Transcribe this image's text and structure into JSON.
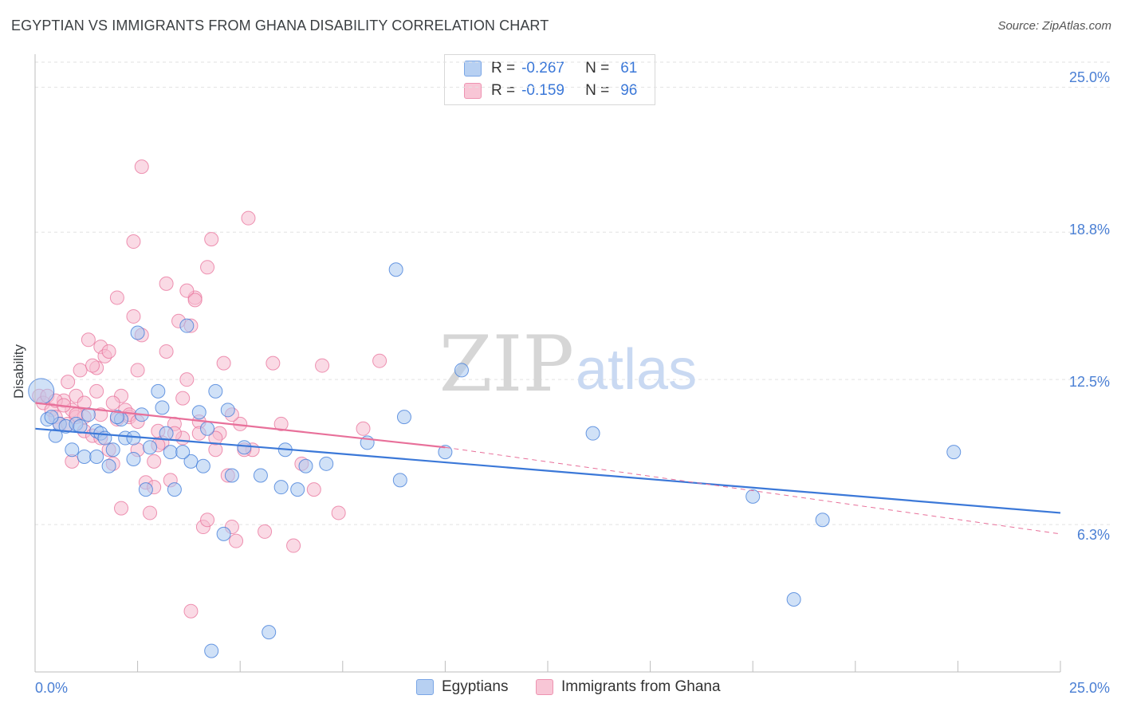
{
  "title": "EGYPTIAN VS IMMIGRANTS FROM GHANA DISABILITY CORRELATION CHART",
  "source": "Source: ZipAtlas.com",
  "colors": {
    "blue": "#3b78d8",
    "pink": "#e8709a",
    "blue_fill": "#aac8f0",
    "pink_fill": "#f6bccf"
  },
  "legend": {
    "r_label": "R =",
    "n_label": "N =",
    "rows": [
      {
        "r": "-0.267",
        "n": "61"
      },
      {
        "r": "-0.159",
        "n": "96"
      }
    ]
  },
  "bottom_legend": [
    "Egyptians",
    "Immigrants from Ghana"
  ],
  "watermark": {
    "zip": "ZIP",
    "atlas": "atlas"
  },
  "chart_data": {
    "type": "scatter",
    "title": "EGYPTIAN VS IMMIGRANTS FROM GHANA DISABILITY CORRELATION CHART",
    "xlabel": "",
    "ylabel": "Disability",
    "xlim": [
      0,
      25
    ],
    "ylim": [
      0,
      26
    ],
    "x_tick_labels": [
      "0.0%",
      "25.0%"
    ],
    "y_ticks": [
      6.3,
      12.5,
      18.8,
      25.0
    ],
    "y_tick_labels": [
      "6.3%",
      "12.5%",
      "18.8%",
      "25.0%"
    ],
    "grid": true,
    "series": [
      {
        "name": "Egyptians",
        "color": "#3b78d8",
        "trend": {
          "x": [
            0,
            25
          ],
          "y": [
            10.4,
            6.8
          ]
        },
        "points": [
          [
            0.15,
            12.0
          ],
          [
            0.3,
            10.8
          ],
          [
            0.5,
            10.1
          ],
          [
            0.6,
            10.6
          ],
          [
            0.75,
            10.5
          ],
          [
            0.9,
            9.5
          ],
          [
            1.0,
            10.6
          ],
          [
            1.2,
            9.2
          ],
          [
            1.3,
            11.0
          ],
          [
            1.5,
            9.2
          ],
          [
            1.5,
            10.3
          ],
          [
            1.6,
            10.2
          ],
          [
            1.7,
            10.0
          ],
          [
            1.8,
            8.8
          ],
          [
            1.9,
            9.5
          ],
          [
            2.1,
            10.8
          ],
          [
            2.2,
            10.0
          ],
          [
            2.4,
            10.0
          ],
          [
            2.4,
            9.1
          ],
          [
            2.5,
            14.5
          ],
          [
            2.6,
            11.0
          ],
          [
            2.7,
            7.8
          ],
          [
            2.8,
            9.6
          ],
          [
            3.0,
            12.0
          ],
          [
            3.1,
            11.3
          ],
          [
            3.2,
            10.2
          ],
          [
            3.3,
            9.4
          ],
          [
            3.4,
            7.8
          ],
          [
            3.7,
            14.8
          ],
          [
            3.8,
            9.0
          ],
          [
            4.0,
            11.1
          ],
          [
            4.1,
            8.8
          ],
          [
            4.2,
            10.4
          ],
          [
            4.4,
            12.0
          ],
          [
            4.6,
            5.9
          ],
          [
            4.7,
            11.2
          ],
          [
            4.8,
            8.4
          ],
          [
            5.1,
            9.6
          ],
          [
            5.5,
            8.4
          ],
          [
            5.7,
            1.7
          ],
          [
            6.0,
            7.9
          ],
          [
            6.1,
            9.5
          ],
          [
            6.4,
            7.8
          ],
          [
            6.6,
            8.8
          ],
          [
            7.1,
            8.9
          ],
          [
            8.1,
            9.8
          ],
          [
            8.8,
            17.2
          ],
          [
            8.9,
            8.2
          ],
          [
            9.0,
            10.9
          ],
          [
            10.0,
            9.4
          ],
          [
            10.4,
            12.9
          ],
          [
            13.6,
            10.2
          ],
          [
            17.5,
            7.5
          ],
          [
            18.5,
            3.1
          ],
          [
            19.2,
            6.5
          ],
          [
            22.4,
            9.4
          ],
          [
            4.3,
            0.9
          ],
          [
            1.1,
            10.5
          ],
          [
            2.0,
            10.9
          ],
          [
            3.6,
            9.4
          ],
          [
            0.4,
            10.9
          ]
        ]
      },
      {
        "name": "Immigrants from Ghana",
        "color": "#e8709a",
        "trend": {
          "x": [
            0,
            10
          ],
          "y": [
            11.5,
            9.6
          ]
        },
        "trend_ext": {
          "x": [
            10,
            25
          ],
          "y": [
            9.6,
            5.9
          ]
        },
        "points": [
          [
            0.1,
            11.8
          ],
          [
            0.2,
            11.5
          ],
          [
            0.3,
            11.8
          ],
          [
            0.4,
            11.2
          ],
          [
            0.5,
            10.9
          ],
          [
            0.6,
            10.6
          ],
          [
            0.7,
            11.6
          ],
          [
            0.8,
            12.4
          ],
          [
            0.9,
            11.2
          ],
          [
            1.0,
            11.8
          ],
          [
            1.0,
            10.9
          ],
          [
            1.1,
            12.9
          ],
          [
            1.2,
            11.5
          ],
          [
            1.2,
            10.3
          ],
          [
            1.3,
            14.2
          ],
          [
            1.4,
            10.1
          ],
          [
            1.5,
            12.0
          ],
          [
            1.5,
            13.0
          ],
          [
            1.6,
            13.9
          ],
          [
            1.6,
            11.0
          ],
          [
            1.7,
            13.5
          ],
          [
            1.8,
            13.7
          ],
          [
            1.8,
            9.5
          ],
          [
            1.9,
            8.9
          ],
          [
            2.0,
            10.8
          ],
          [
            2.0,
            16.0
          ],
          [
            2.1,
            11.8
          ],
          [
            2.2,
            11.2
          ],
          [
            2.3,
            10.9
          ],
          [
            2.4,
            18.4
          ],
          [
            2.4,
            15.2
          ],
          [
            2.5,
            12.9
          ],
          [
            2.5,
            9.5
          ],
          [
            2.6,
            14.4
          ],
          [
            2.7,
            8.1
          ],
          [
            2.8,
            6.8
          ],
          [
            2.9,
            7.9
          ],
          [
            2.9,
            9.0
          ],
          [
            3.0,
            10.3
          ],
          [
            3.1,
            9.8
          ],
          [
            3.2,
            16.6
          ],
          [
            3.3,
            8.2
          ],
          [
            3.4,
            10.6
          ],
          [
            3.5,
            15.0
          ],
          [
            3.6,
            10.0
          ],
          [
            3.7,
            12.5
          ],
          [
            3.8,
            14.8
          ],
          [
            3.9,
            16.0
          ],
          [
            4.0,
            10.7
          ],
          [
            4.1,
            6.2
          ],
          [
            4.2,
            6.5
          ],
          [
            4.2,
            17.3
          ],
          [
            4.3,
            18.5
          ],
          [
            4.4,
            9.5
          ],
          [
            4.5,
            10.2
          ],
          [
            4.6,
            13.2
          ],
          [
            4.7,
            8.4
          ],
          [
            4.8,
            6.2
          ],
          [
            4.9,
            5.6
          ],
          [
            5.0,
            10.6
          ],
          [
            5.2,
            19.4
          ],
          [
            5.3,
            9.5
          ],
          [
            5.6,
            6.0
          ],
          [
            5.8,
            13.2
          ],
          [
            6.0,
            10.6
          ],
          [
            6.3,
            5.4
          ],
          [
            6.5,
            8.9
          ],
          [
            6.8,
            7.8
          ],
          [
            7.0,
            13.1
          ],
          [
            7.4,
            6.8
          ],
          [
            8.0,
            10.4
          ],
          [
            8.4,
            13.3
          ],
          [
            2.6,
            21.6
          ],
          [
            3.2,
            13.7
          ],
          [
            3.7,
            16.3
          ],
          [
            3.9,
            15.9
          ],
          [
            0.9,
            9.0
          ],
          [
            1.6,
            10.0
          ],
          [
            2.1,
            7.0
          ],
          [
            3.4,
            10.2
          ],
          [
            3.8,
            2.6
          ],
          [
            4.0,
            10.2
          ],
          [
            4.8,
            11.0
          ],
          [
            5.1,
            9.5
          ],
          [
            1.2,
            10.9
          ],
          [
            0.5,
            11.6
          ],
          [
            0.7,
            11.4
          ],
          [
            1.9,
            11.5
          ],
          [
            2.3,
            11.0
          ],
          [
            1.0,
            11.0
          ],
          [
            3.0,
            9.7
          ],
          [
            0.8,
            10.6
          ],
          [
            1.4,
            13.1
          ],
          [
            2.5,
            10.7
          ],
          [
            3.6,
            11.7
          ],
          [
            4.4,
            10.0
          ]
        ]
      }
    ]
  }
}
